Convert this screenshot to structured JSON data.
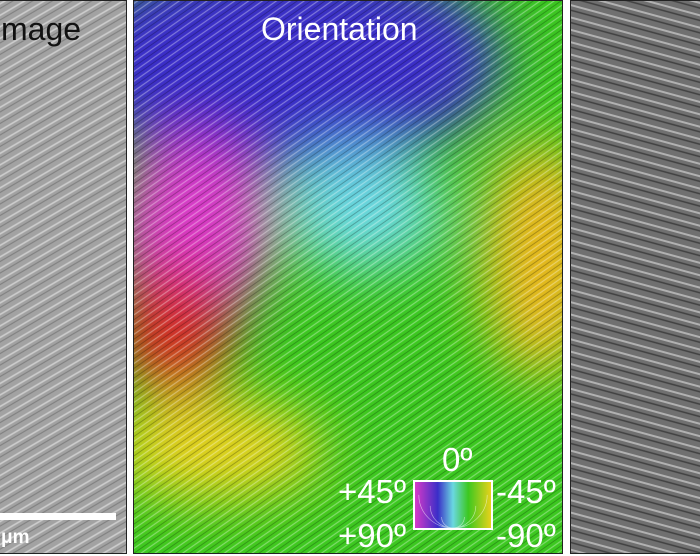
{
  "panels": {
    "left": {
      "title": "mage",
      "scale_label": "μm"
    },
    "middle": {
      "title": "Orientation",
      "legend": {
        "top": "0º",
        "upper_left": "+45º",
        "upper_right": "-45º",
        "lower_left": "+90º",
        "lower_right": "-90º"
      }
    }
  },
  "colors": {
    "blue": "#3a2ec8",
    "magenta": "#d83ac8",
    "red": "#d62a20",
    "yellow": "#e8d21a",
    "green": "#3cc820",
    "cyan": "#6ad8e0"
  }
}
